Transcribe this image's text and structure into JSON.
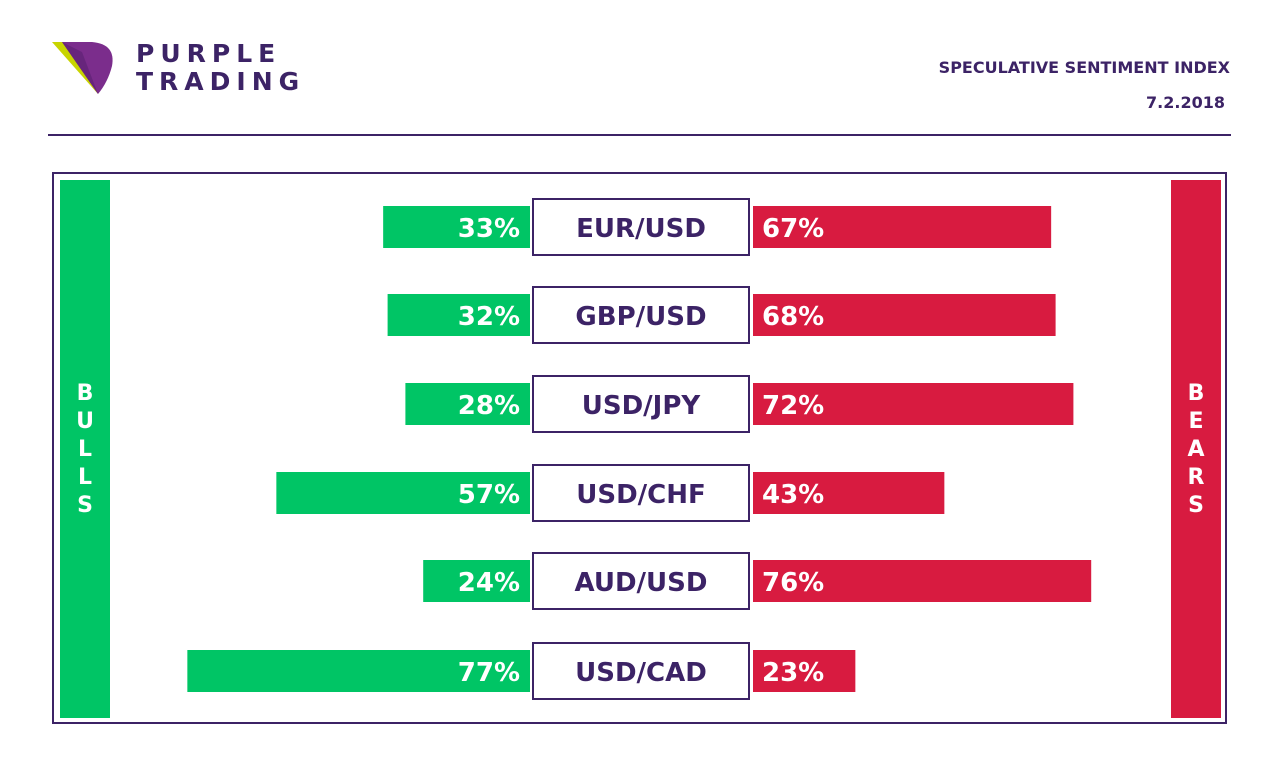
{
  "brand": {
    "line1": "PURPLE",
    "line2": "TRADING"
  },
  "header": {
    "title": "SPECULATIVE SENTIMENT INDEX",
    "date": "7.2.2018"
  },
  "sides": {
    "bulls": [
      "B",
      "U",
      "L",
      "L",
      "S"
    ],
    "bears": [
      "B",
      "E",
      "A",
      "R",
      "S"
    ]
  },
  "colors": {
    "brand": "#3c2366",
    "bulls": "#00c565",
    "bears": "#d81b40",
    "logo_yellow": "#c8d400",
    "logo_purple": "#7b2d8c"
  },
  "chart_data": {
    "type": "bar",
    "categories": [
      "EUR/USD",
      "GBP/USD",
      "USD/JPY",
      "USD/CHF",
      "AUD/USD",
      "USD/CAD"
    ],
    "series": [
      {
        "name": "BULLS",
        "values": [
          33,
          32,
          28,
          57,
          24,
          77
        ],
        "labels": [
          "33%",
          "32%",
          "28%",
          "57%",
          "24%",
          "77%"
        ]
      },
      {
        "name": "BEARS",
        "values": [
          67,
          68,
          72,
          43,
          76,
          23
        ],
        "labels": [
          "67%",
          "68%",
          "72%",
          "43%",
          "76%",
          "23%"
        ]
      }
    ],
    "unit": "%"
  }
}
